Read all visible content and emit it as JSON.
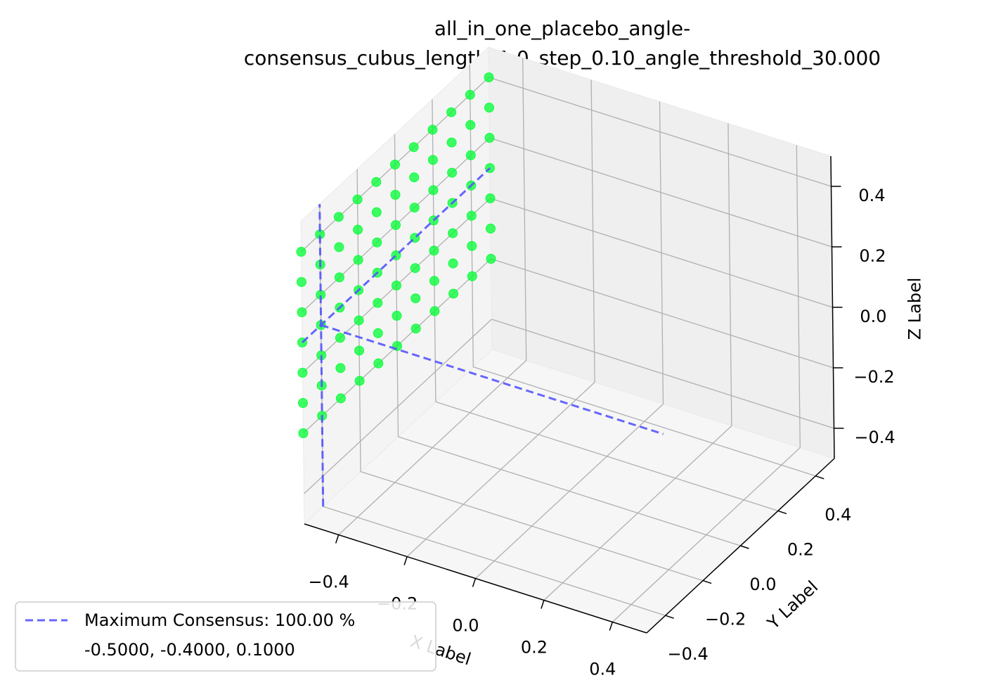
{
  "chart_data": {
    "type": "scatter3d",
    "title": [
      "all_in_one_placebo_angle-",
      "consensus_cubus_length_1.0_step_0.10_angle_threshold_30.000"
    ],
    "xlabel": "X Label",
    "ylabel": "Y Label",
    "zlabel": "Z Label",
    "xlim": [
      -0.5,
      0.5
    ],
    "ylim": [
      -0.5,
      0.5
    ],
    "zlim": [
      -0.5,
      0.5
    ],
    "xticks": [
      {
        "value": -0.4,
        "label": "−0.4"
      },
      {
        "value": -0.2,
        "label": "−0.2"
      },
      {
        "value": 0.0,
        "label": "0.0"
      },
      0.2,
      0.4
    ],
    "yticks": [
      {
        "value": -0.4,
        "label": "−0.4"
      },
      {
        "value": -0.2,
        "label": "−0.2"
      },
      {
        "value": 0.0,
        "label": "0.0"
      },
      0.2,
      0.4
    ],
    "zticks": [
      {
        "value": -0.4,
        "label": "−0.4"
      },
      {
        "value": -0.2,
        "label": "−0.2"
      },
      {
        "value": 0.0,
        "label": "0.0"
      },
      0.2,
      0.4
    ],
    "grid": true,
    "series": [
      {
        "color": "#00ff33",
        "x": [
          -0.5,
          -0.5,
          -0.5,
          -0.5,
          -0.5,
          -0.5,
          -0.5,
          -0.5,
          -0.5,
          -0.5,
          -0.5,
          -0.5,
          -0.5,
          -0.5,
          -0.5,
          -0.5,
          -0.5,
          -0.5,
          -0.5,
          -0.5,
          -0.5,
          -0.5,
          -0.5,
          -0.5,
          -0.5,
          -0.5,
          -0.5,
          -0.5,
          -0.5,
          -0.5,
          -0.5,
          -0.5,
          -0.5,
          -0.5,
          -0.5,
          -0.5,
          -0.5,
          -0.5,
          -0.5,
          -0.5,
          -0.5,
          -0.5,
          -0.5,
          -0.5,
          -0.5,
          -0.5,
          -0.5,
          -0.5,
          -0.5,
          -0.5,
          -0.5,
          -0.5,
          -0.5,
          -0.5,
          -0.5,
          -0.5,
          -0.5,
          -0.5,
          -0.5,
          -0.5,
          -0.5,
          -0.5,
          -0.5,
          -0.5,
          -0.5,
          -0.5,
          -0.5,
          -0.5,
          -0.5,
          -0.5,
          -0.5,
          -0.5,
          -0.5,
          -0.5,
          -0.5,
          -0.5,
          -0.5
        ],
        "y": [
          -0.5,
          -0.5,
          -0.5,
          -0.5,
          -0.5,
          -0.5,
          -0.5,
          -0.4,
          -0.4,
          -0.4,
          -0.4,
          -0.4,
          -0.4,
          -0.4,
          -0.3,
          -0.3,
          -0.3,
          -0.3,
          -0.3,
          -0.3,
          -0.3,
          -0.2,
          -0.2,
          -0.2,
          -0.2,
          -0.2,
          -0.2,
          -0.2,
          -0.1,
          -0.1,
          -0.1,
          -0.1,
          -0.1,
          -0.1,
          -0.1,
          0.0,
          0.0,
          0.0,
          0.0,
          0.0,
          0.0,
          0.0,
          0.1,
          0.1,
          0.1,
          0.1,
          0.1,
          0.1,
          0.1,
          0.2,
          0.2,
          0.2,
          0.2,
          0.2,
          0.2,
          0.2,
          0.3,
          0.3,
          0.3,
          0.3,
          0.3,
          0.3,
          0.3,
          0.4,
          0.4,
          0.4,
          0.4,
          0.4,
          0.4,
          0.4,
          0.5,
          0.5,
          0.5,
          0.5,
          0.5,
          0.5,
          0.5
        ],
        "z": [
          -0.2,
          -0.1,
          0.0,
          0.1,
          0.2,
          0.3,
          0.4,
          -0.2,
          -0.1,
          0.0,
          0.1,
          0.2,
          0.3,
          0.4,
          -0.2,
          -0.1,
          0.0,
          0.1,
          0.2,
          0.3,
          0.4,
          -0.2,
          -0.1,
          0.0,
          0.1,
          0.2,
          0.3,
          0.4,
          -0.2,
          -0.1,
          0.0,
          0.1,
          0.2,
          0.3,
          0.4,
          -0.2,
          -0.1,
          0.0,
          0.1,
          0.2,
          0.3,
          0.4,
          -0.2,
          -0.1,
          0.0,
          0.1,
          0.2,
          0.3,
          0.4,
          -0.2,
          -0.1,
          0.0,
          0.1,
          0.2,
          0.3,
          0.4,
          -0.2,
          -0.1,
          0.0,
          0.1,
          0.2,
          0.3,
          0.4,
          -0.2,
          -0.1,
          0.0,
          0.1,
          0.2,
          0.3,
          0.4,
          -0.2,
          -0.1,
          0.0,
          0.1,
          0.2,
          0.3,
          0.4
        ]
      }
    ],
    "max_point": {
      "x": -0.5,
      "y": -0.4,
      "z": 0.1,
      "color": "#5555ff",
      "legend": [
        "Maximum Consensus: 100.00 %",
        "-0.5000, -0.4000, 0.1000"
      ]
    },
    "legend_position": "lower left"
  }
}
